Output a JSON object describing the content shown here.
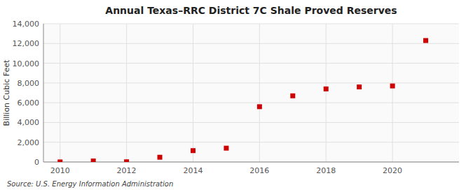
{
  "chart_data": {
    "type": "scatter",
    "title": "Annual Texas–RRC District 7C Shale Proved Reserves",
    "ylabel": "Billion Cubic Feet",
    "annotations": [
      "Source: U.S. Energy Information Administration"
    ],
    "x": [
      2010,
      2011,
      2012,
      2013,
      2014,
      2015,
      2016,
      2017,
      2018,
      2019,
      2020,
      2021
    ],
    "values": [
      5,
      100,
      20,
      480,
      1150,
      1400,
      5600,
      6700,
      7400,
      7600,
      7700,
      12300
    ],
    "color": "#cc0000",
    "marker": "square",
    "xlim": [
      2009.5,
      2022
    ],
    "ylim": [
      0,
      14000
    ],
    "xticks": [
      2010,
      2012,
      2014,
      2016,
      2018,
      2020
    ],
    "yticks": [
      0,
      {
        "value": 2000,
        "label": "2,000"
      },
      {
        "value": 4000,
        "label": "4,000"
      },
      {
        "value": 6000,
        "label": "6,000"
      },
      {
        "value": 8000,
        "label": "8,000"
      },
      {
        "value": 10000,
        "label": "10,000"
      },
      {
        "value": 12000,
        "label": "12,000"
      },
      {
        "value": 14000,
        "label": "14,000"
      }
    ],
    "grid": true
  }
}
